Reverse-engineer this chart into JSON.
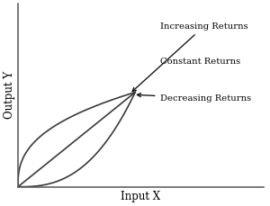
{
  "xlabel": "Input X",
  "ylabel": "Output Y",
  "background_color": "#ffffff",
  "line_color": "#3a3a3a",
  "annotation_increasing": "Increasing Returns",
  "annotation_constant": "Constant Returns",
  "annotation_decreasing": "Decreasing Returns",
  "arrow_color": "#1a1a1a",
  "fontsize_label": 8.5,
  "fontsize_annotation": 7.2,
  "xlim": [
    0,
    1.3
  ],
  "ylim": [
    0,
    1.2
  ],
  "curve_end_x": 0.62,
  "curve_end_y": 0.62,
  "inc_power": 0.38,
  "dec_power": 2.6,
  "linewidth": 1.2
}
